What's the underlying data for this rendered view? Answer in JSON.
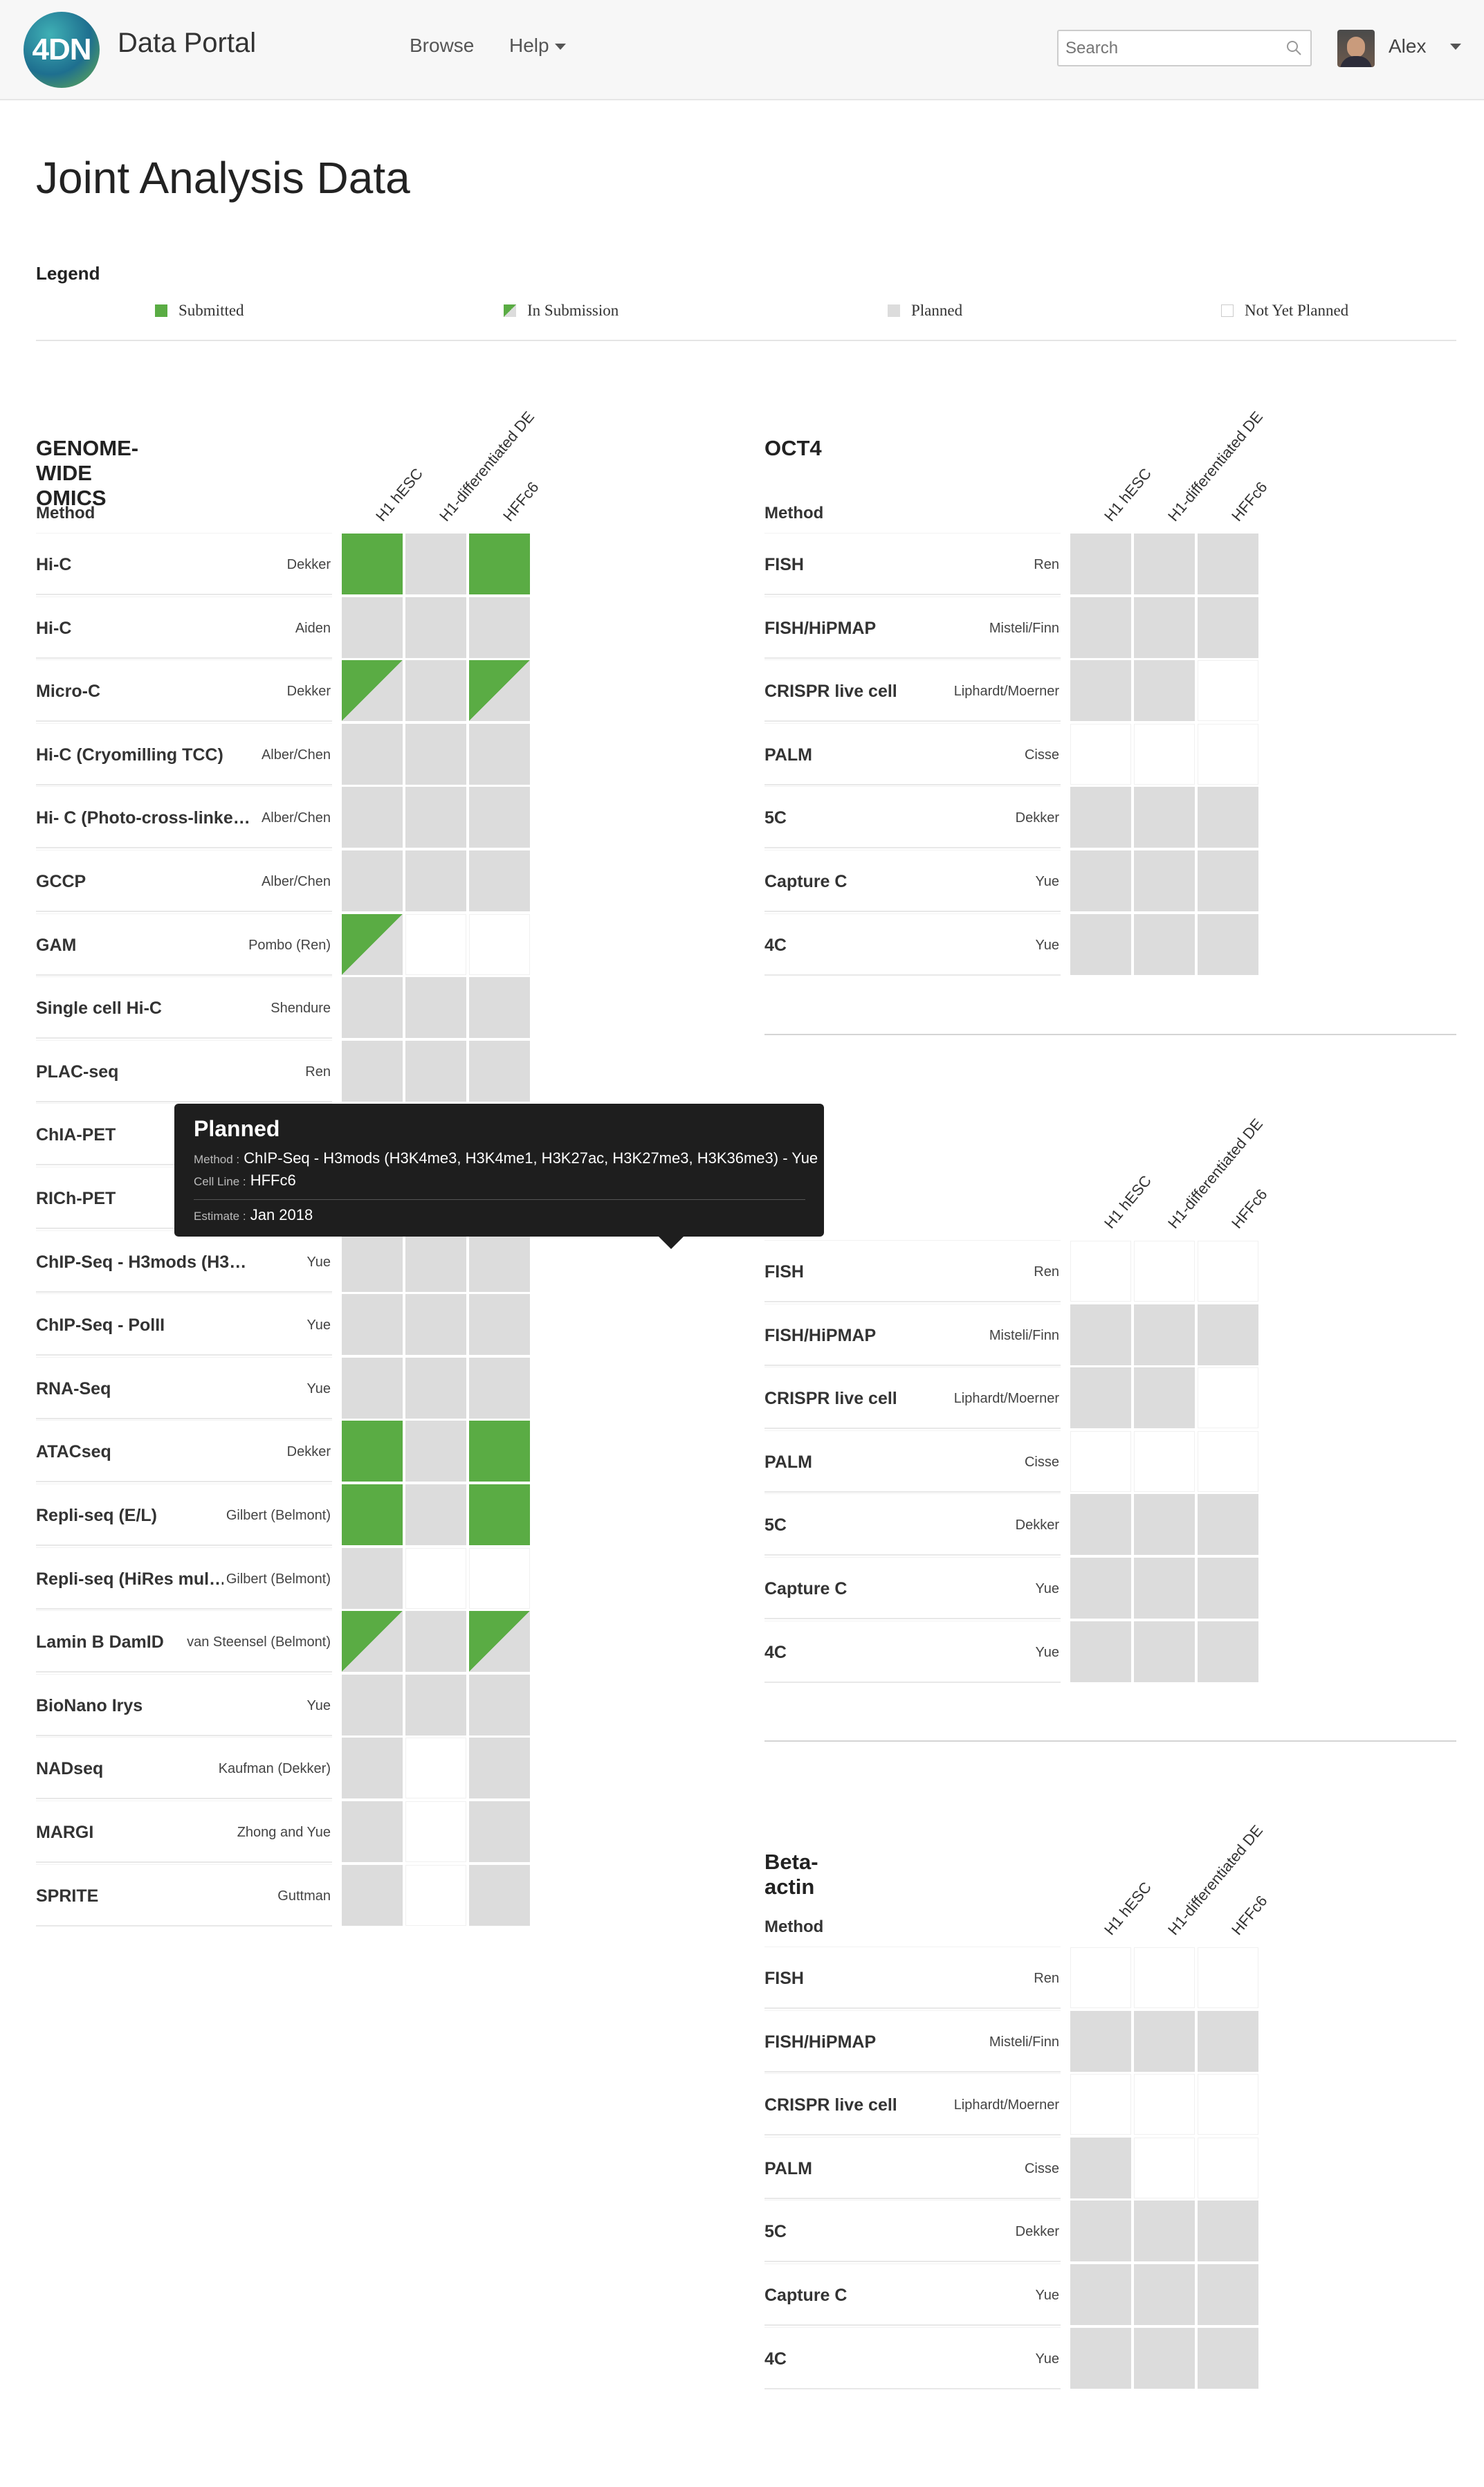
{
  "nav": {
    "logo_text": "4DN",
    "brand": "Data Portal",
    "browse": "Browse",
    "help": "Help",
    "search_placeholder": "Search",
    "user": "Alex"
  },
  "page": {
    "title": "Joint Analysis Data"
  },
  "legend": {
    "title": "Legend",
    "items": [
      {
        "label": "Submitted",
        "status": "submitted"
      },
      {
        "label": "In Submission",
        "status": "insub"
      },
      {
        "label": "Planned",
        "status": "planned"
      },
      {
        "label": "Not Yet Planned",
        "status": "notyet"
      }
    ]
  },
  "colors": {
    "submitted": "#5aac44",
    "planned": "#dcdcdc",
    "not_yet_planned": "#ffffff"
  },
  "columns": [
    "H1 hESC",
    "H1-differentiated DE",
    "HFFc6"
  ],
  "method_header": "Method",
  "sections": [
    {
      "title": "GENOME-WIDE OMICS",
      "rows": [
        {
          "method": "Hi-C",
          "lab": "Dekker",
          "cells": [
            "submitted",
            "planned",
            "submitted"
          ]
        },
        {
          "method": "Hi-C",
          "lab": "Aiden",
          "cells": [
            "planned",
            "planned",
            "planned"
          ]
        },
        {
          "method": "Micro-C",
          "lab": "Dekker",
          "cells": [
            "insub",
            "planned",
            "insub"
          ]
        },
        {
          "method": "Hi-C (Cryomilling TCC)",
          "lab": "Alber/Chen",
          "cells": [
            "planned",
            "planned",
            "planned"
          ]
        },
        {
          "method": "Hi- C (Photo-cross-linked …",
          "lab": "Alber/Chen",
          "cells": [
            "planned",
            "planned",
            "planned"
          ]
        },
        {
          "method": "GCCP",
          "lab": "Alber/Chen",
          "cells": [
            "planned",
            "planned",
            "planned"
          ]
        },
        {
          "method": "GAM",
          "lab": "Pombo (Ren)",
          "cells": [
            "insub",
            "notyet",
            "notyet"
          ]
        },
        {
          "method": "Single cell Hi-C",
          "lab": "Shendure",
          "cells": [
            "planned",
            "planned",
            "planned"
          ]
        },
        {
          "method": "PLAC-seq",
          "lab": "Ren",
          "cells": [
            "planned",
            "planned",
            "planned"
          ]
        },
        {
          "method": "ChIA-PET",
          "lab": "",
          "cells": [
            "planned",
            "planned",
            "planned"
          ]
        },
        {
          "method": "RICh-PET",
          "lab": "",
          "cells": [
            "planned",
            "planned",
            "planned"
          ]
        },
        {
          "method": "ChIP-Seq - H3mods (H3K4me3, …",
          "lab": "Yue",
          "cells": [
            "planned",
            "planned",
            "planned"
          ]
        },
        {
          "method": "ChIP-Seq - PolII",
          "lab": "Yue",
          "cells": [
            "planned",
            "planned",
            "planned"
          ]
        },
        {
          "method": "RNA-Seq",
          "lab": "Yue",
          "cells": [
            "planned",
            "planned",
            "planned"
          ]
        },
        {
          "method": "ATACseq",
          "lab": "Dekker",
          "cells": [
            "submitted",
            "planned",
            "submitted"
          ]
        },
        {
          "method": "Repli-seq (E/L)",
          "lab": "Gilbert (Belmont)",
          "cells": [
            "submitted",
            "planned",
            "submitted"
          ]
        },
        {
          "method": "Repli-seq (HiRes mul…",
          "lab": "Gilbert (Belmont)",
          "cells": [
            "planned",
            "notyet",
            "notyet"
          ]
        },
        {
          "method": "Lamin B DamID",
          "lab": "van Steensel (Belmont)",
          "cells": [
            "insub",
            "planned",
            "insub"
          ]
        },
        {
          "method": "BioNano Irys",
          "lab": "Yue",
          "cells": [
            "planned",
            "planned",
            "planned"
          ]
        },
        {
          "method": "NADseq",
          "lab": "Kaufman (Dekker)",
          "cells": [
            "planned",
            "notyet",
            "planned"
          ]
        },
        {
          "method": "MARGI",
          "lab": "Zhong and Yue",
          "cells": [
            "planned",
            "notyet",
            "planned"
          ]
        },
        {
          "method": "SPRITE",
          "lab": "Guttman",
          "cells": [
            "planned",
            "notyet",
            "planned"
          ]
        }
      ]
    },
    {
      "title": "OCT4",
      "rows": [
        {
          "method": "FISH",
          "lab": "Ren",
          "cells": [
            "planned",
            "planned",
            "planned"
          ]
        },
        {
          "method": "FISH/HiPMAP",
          "lab": "Misteli/Finn",
          "cells": [
            "planned",
            "planned",
            "planned"
          ]
        },
        {
          "method": "CRISPR live cell",
          "lab": "Liphardt/Moerner",
          "cells": [
            "planned",
            "planned",
            "notyet"
          ]
        },
        {
          "method": "PALM",
          "lab": "Cisse",
          "cells": [
            "notyet",
            "notyet",
            "notyet"
          ]
        },
        {
          "method": "5C",
          "lab": "Dekker",
          "cells": [
            "planned",
            "planned",
            "planned"
          ]
        },
        {
          "method": "Capture C",
          "lab": "Yue",
          "cells": [
            "planned",
            "planned",
            "planned"
          ]
        },
        {
          "method": "4C",
          "lab": "Yue",
          "cells": [
            "planned",
            "planned",
            "planned"
          ]
        }
      ]
    },
    {
      "title": "",
      "rows": [
        {
          "method": "FISH",
          "lab": "Ren",
          "cells": [
            "notyet",
            "notyet",
            "notyet"
          ]
        },
        {
          "method": "FISH/HiPMAP",
          "lab": "Misteli/Finn",
          "cells": [
            "planned",
            "planned",
            "planned"
          ]
        },
        {
          "method": "CRISPR live cell",
          "lab": "Liphardt/Moerner",
          "cells": [
            "planned",
            "planned",
            "notyet"
          ]
        },
        {
          "method": "PALM",
          "lab": "Cisse",
          "cells": [
            "notyet",
            "notyet",
            "notyet"
          ]
        },
        {
          "method": "5C",
          "lab": "Dekker",
          "cells": [
            "planned",
            "planned",
            "planned"
          ]
        },
        {
          "method": "Capture C",
          "lab": "Yue",
          "cells": [
            "planned",
            "planned",
            "planned"
          ]
        },
        {
          "method": "4C",
          "lab": "Yue",
          "cells": [
            "planned",
            "planned",
            "planned"
          ]
        }
      ]
    },
    {
      "title": "Beta-actin",
      "rows": [
        {
          "method": "FISH",
          "lab": "Ren",
          "cells": [
            "notyet",
            "notyet",
            "notyet"
          ]
        },
        {
          "method": "FISH/HiPMAP",
          "lab": "Misteli/Finn",
          "cells": [
            "planned",
            "planned",
            "planned"
          ]
        },
        {
          "method": "CRISPR live cell",
          "lab": "Liphardt/Moerner",
          "cells": [
            "notyet",
            "notyet",
            "notyet"
          ]
        },
        {
          "method": "PALM",
          "lab": "Cisse",
          "cells": [
            "planned",
            "notyet",
            "notyet"
          ]
        },
        {
          "method": "5C",
          "lab": "Dekker",
          "cells": [
            "planned",
            "planned",
            "planned"
          ]
        },
        {
          "method": "Capture C",
          "lab": "Yue",
          "cells": [
            "planned",
            "planned",
            "planned"
          ]
        },
        {
          "method": "4C",
          "lab": "Yue",
          "cells": [
            "planned",
            "planned",
            "planned"
          ]
        }
      ]
    }
  ],
  "tooltip": {
    "title": "Planned",
    "method_key": "Method :",
    "method_value": "ChIP-Seq - H3mods (H3K4me3, H3K4me1, H3K27ac, H3K27me3, H3K36me3) - Yue",
    "cell_line_key": "Cell Line :",
    "cell_line_value": "HFFc6",
    "estimate_key": "Estimate :",
    "estimate_value": "Jan 2018"
  }
}
